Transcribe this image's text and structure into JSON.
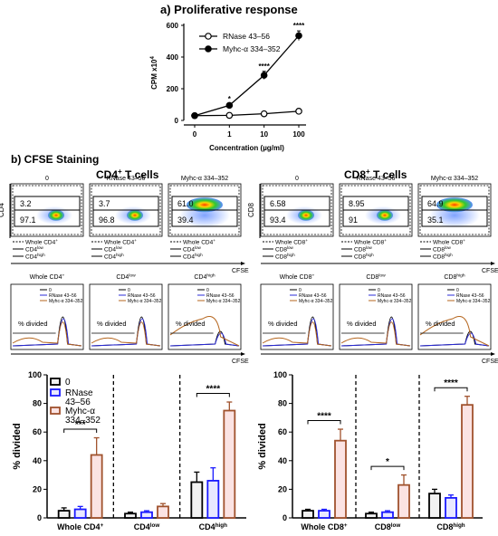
{
  "panel_a": {
    "title": "a) Proliferative response",
    "chart_data": {
      "type": "line",
      "x_categories": [
        "0",
        "1",
        "10",
        "100"
      ],
      "xlabel": "Concentration (µg/ml)",
      "ylabel": "CPM x10",
      "ylabel_sup": "4",
      "ylim": [
        0,
        600
      ],
      "yticks": [
        "0",
        "200",
        "400",
        "600"
      ],
      "series": [
        {
          "name": "RNase 43–56",
          "marker": "open-circle",
          "values": [
            30,
            32,
            42,
            58
          ],
          "errors": [
            3,
            3,
            5,
            6
          ]
        },
        {
          "name": "Myhc-α 334–352",
          "marker": "filled-circle",
          "values": [
            30,
            95,
            285,
            535
          ],
          "errors": [
            3,
            8,
            25,
            30
          ]
        }
      ],
      "annotations": [
        {
          "x": "1",
          "text": "*"
        },
        {
          "x": "10",
          "text": "****"
        },
        {
          "x": "100",
          "text": "****"
        }
      ]
    }
  },
  "panel_b": {
    "title": "b) CFSE Staining",
    "cd4": {
      "title": "CD4",
      "title_sup": "+",
      "title_suffix": " T cells",
      "y_axis": "CD4",
      "x_axis": "CFSE",
      "conditions": [
        "0",
        "RNase 43–56",
        "Myhc-α 334–352"
      ],
      "upper_pct": [
        "3.2",
        "3.7",
        "61.0"
      ],
      "lower_pct": [
        "97.1",
        "96.8",
        "39.4"
      ],
      "gate_legend": [
        {
          "label": "Whole CD4",
          "sup": "+"
        },
        {
          "label": "CD4",
          "sup": "low"
        },
        {
          "label": "CD4",
          "sup": "high"
        }
      ],
      "histogram_titles": [
        {
          "label": "Whole CD4",
          "sup": "+"
        },
        {
          "label": "CD4",
          "sup": "low"
        },
        {
          "label": "CD4",
          "sup": "high"
        }
      ],
      "histogram_legend": [
        "0",
        "RNase 43–56",
        "Myhc-α 334–352"
      ],
      "histogram_label": "% divided"
    },
    "cd8": {
      "title": "CD8",
      "title_sup": "+",
      "title_suffix": " T cells",
      "y_axis": "CD8",
      "x_axis": "CFSE",
      "conditions": [
        "0",
        "RNase 43–56",
        "Myhc-α 334–352"
      ],
      "upper_pct": [
        "6.58",
        "8.95",
        "64.9"
      ],
      "lower_pct": [
        "93.4",
        "91",
        "35.1"
      ],
      "gate_legend": [
        {
          "label": "Whole CD8",
          "sup": "+"
        },
        {
          "label": "CD8",
          "sup": "low"
        },
        {
          "label": "CD8",
          "sup": "high"
        }
      ],
      "histogram_titles": [
        {
          "label": "Whole CD8",
          "sup": "+"
        },
        {
          "label": "CD8",
          "sup": "low"
        },
        {
          "label": "CD8",
          "sup": "high"
        }
      ],
      "histogram_legend": [
        "0",
        "RNase 43–56",
        "Myhc-α 334–352"
      ],
      "histogram_label": "% divided"
    },
    "bar_legend": [
      "0",
      "RNase 43–56",
      "Myhc-α 334–352"
    ],
    "colors": {
      "zero": "#000000",
      "rnase": "#1a1aff",
      "myhc": "#a0522d",
      "rnase_line": "#2b2bd9",
      "myhc_line": "#b5651d"
    }
  },
  "chart_data": [
    {
      "type": "bar",
      "ylabel": "% divided",
      "ylim": [
        0,
        100
      ],
      "yticks": [
        "0",
        "20",
        "40",
        "60",
        "80",
        "100"
      ],
      "groups": [
        {
          "label": "Whole CD4",
          "sup": "+"
        },
        {
          "label": "CD4",
          "sup": "low"
        },
        {
          "label": "CD4",
          "sup": "high"
        }
      ],
      "series": [
        {
          "name": "0",
          "values": [
            5,
            3,
            25
          ],
          "errors": [
            2,
            1,
            7
          ]
        },
        {
          "name": "RNase 43–56",
          "values": [
            6,
            4,
            26
          ],
          "errors": [
            2,
            1,
            9
          ]
        },
        {
          "name": "Myhc-α 334–352",
          "values": [
            44,
            8,
            75
          ],
          "errors": [
            12,
            2,
            6
          ]
        }
      ],
      "significance": [
        {
          "group": 0,
          "text": "***"
        },
        {
          "group": 2,
          "text": "****"
        }
      ]
    },
    {
      "type": "bar",
      "ylabel": "% divided",
      "ylim": [
        0,
        100
      ],
      "yticks": [
        "0",
        "20",
        "40",
        "60",
        "80",
        "100"
      ],
      "groups": [
        {
          "label": "Whole CD8",
          "sup": "+"
        },
        {
          "label": "CD8",
          "sup": "low"
        },
        {
          "label": "CD8",
          "sup": "high"
        }
      ],
      "series": [
        {
          "name": "0",
          "values": [
            5,
            3,
            17
          ],
          "errors": [
            1,
            1,
            3
          ]
        },
        {
          "name": "RNase 43–56",
          "values": [
            5,
            4,
            14
          ],
          "errors": [
            1,
            1,
            2
          ]
        },
        {
          "name": "Myhc-α 334–352",
          "values": [
            54,
            23,
            79
          ],
          "errors": [
            8,
            7,
            6
          ]
        }
      ],
      "significance": [
        {
          "group": 0,
          "text": "****"
        },
        {
          "group": 1,
          "text": "*"
        },
        {
          "group": 2,
          "text": "****"
        }
      ]
    }
  ]
}
